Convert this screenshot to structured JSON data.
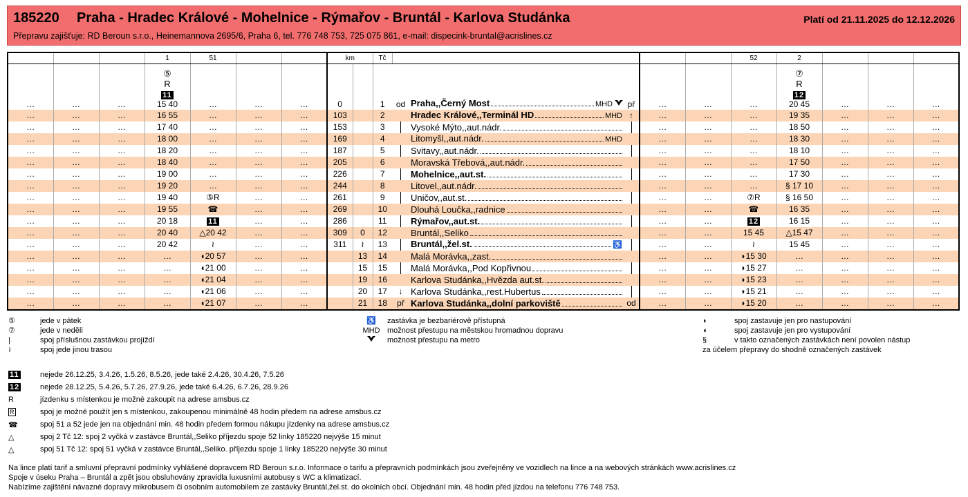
{
  "header": {
    "line": "185220",
    "route": "Praha - Hradec Králové - Mohelnice - Rýmařov - Bruntál - Karlova Studánka",
    "validity": "Platí od 21.11.2025 do 12.12.2026",
    "operator": "Přepravu zajišťuje: RD Beroun s.r.o., Heinemannova 2695/6, Praha 6, tel. 776 748 753, 725 075 861, e-mail: dispecink-bruntal@acrislines.cz"
  },
  "table": {
    "head_left": [
      null,
      null,
      null,
      "1",
      "51",
      null,
      null
    ],
    "head_mid": [
      "km",
      "Tč"
    ],
    "head_right": [
      null,
      null,
      "52",
      "2",
      null,
      null,
      null
    ],
    "flags_left": [
      null,
      null,
      null,
      [
        "⑤",
        "R",
        {
          "text": "11",
          "style": "box"
        }
      ],
      null,
      null,
      null
    ],
    "flags_right": [
      null,
      null,
      null,
      [
        "⑦",
        "R",
        {
          "text": "12",
          "style": "box"
        }
      ],
      null,
      null,
      null
    ],
    "rows": [
      {
        "left": [
          "…",
          "…",
          "…",
          "15 40",
          "…",
          "…",
          "…"
        ],
        "km": 0,
        "tc": 1,
        "in": "od",
        "stop": "Praha,,Černý Most",
        "bold": true,
        "info": "MHD",
        "metro": true,
        "out": "př",
        "right": [
          "…",
          "…",
          "…",
          "20 45",
          "…",
          "…",
          "…"
        ]
      },
      {
        "left": [
          "…",
          "…",
          "…",
          "16 55",
          "…",
          "…",
          "…"
        ],
        "km": 103,
        "tc": 2,
        "stop": "Hradec Králové,,Terminál HD",
        "bold": true,
        "info": "MHD",
        "out": "↑",
        "right": [
          "…",
          "…",
          "…",
          "19 35",
          "…",
          "…",
          "…"
        ]
      },
      {
        "left": [
          "…",
          "…",
          "…",
          "17 40",
          "…",
          "…",
          "…"
        ],
        "km": 153,
        "tc": 3,
        "stop": "Vysoké Mýto,,aut.nádr.",
        "right": [
          "…",
          "…",
          "…",
          "18 50",
          "…",
          "…",
          "…"
        ]
      },
      {
        "left": [
          "…",
          "…",
          "…",
          "18 00",
          "…",
          "…",
          "…"
        ],
        "km": 169,
        "tc": 4,
        "stop": "Litomyšl,,aut.nádr.",
        "info": "MHD",
        "right": [
          "…",
          "…",
          "…",
          "18 30",
          "…",
          "…",
          "…"
        ]
      },
      {
        "left": [
          "…",
          "…",
          "…",
          "18 20",
          "…",
          "…",
          "…"
        ],
        "km": 187,
        "tc": 5,
        "stop": "Svitavy,,aut.nádr.",
        "right": [
          "…",
          "…",
          "…",
          "18 10",
          "…",
          "…",
          "…"
        ]
      },
      {
        "left": [
          "…",
          "…",
          "…",
          "18 40",
          "…",
          "…",
          "…"
        ],
        "km": 205,
        "tc": 6,
        "stop": "Moravská Třebová,,aut.nádr.",
        "right": [
          "…",
          "…",
          "…",
          "17 50",
          "…",
          "…",
          "…"
        ]
      },
      {
        "left": [
          "…",
          "…",
          "…",
          "19 00",
          "…",
          "…",
          "…"
        ],
        "km": 226,
        "tc": 7,
        "stop": "Mohelnice,,aut.st.",
        "bold": true,
        "right": [
          "…",
          "…",
          "…",
          "17 30",
          "…",
          "…",
          "…"
        ]
      },
      {
        "left": [
          "…",
          "…",
          "…",
          "19 20",
          "…",
          "…",
          "…"
        ],
        "km": 244,
        "tc": 8,
        "stop": "Litovel,,aut.nádr.",
        "right": [
          "…",
          "…",
          "…",
          "§ 17 10",
          "…",
          "…",
          "…"
        ]
      },
      {
        "left": [
          "…",
          "…",
          "…",
          "19 40",
          "⑤R",
          "…",
          "…"
        ],
        "km": 261,
        "tc": 9,
        "stop": "Uničov,,aut.st.",
        "right": [
          "…",
          "…",
          "⑦R",
          "§ 16 50",
          "…",
          "…",
          "…"
        ]
      },
      {
        "left": [
          "…",
          "…",
          "…",
          "19 55",
          "☎",
          "…",
          "…"
        ],
        "km": 269,
        "tc": 10,
        "stop": "Dlouhá Loučka,,radnice",
        "right": [
          "…",
          "…",
          "☎",
          "16 35",
          "…",
          "…",
          "…"
        ]
      },
      {
        "left": [
          "…",
          "…",
          "…",
          "20 18",
          {
            "text": "11",
            "style": "box"
          },
          "…",
          "…"
        ],
        "km": 286,
        "tc": 11,
        "stop": "Rýmařov,,aut.st.",
        "bold": true,
        "right": [
          "…",
          "…",
          {
            "text": "12",
            "style": "box"
          },
          "16 15",
          "…",
          "…",
          "…"
        ]
      },
      {
        "left": [
          "…",
          "…",
          "…",
          "20 40",
          "△20 42",
          "…",
          "…"
        ],
        "km": 309,
        "km2": 0,
        "tc": 12,
        "stop": "Bruntál,,Seliko",
        "right": [
          "…",
          "…",
          "15 45",
          "△15 47",
          "…",
          "…",
          "…"
        ]
      },
      {
        "left": [
          "…",
          "…",
          "…",
          "20 42",
          "≀",
          "…",
          "…"
        ],
        "km": 311,
        "km2": "≀",
        "tc": 13,
        "stop": "Bruntál,,žel.st.",
        "bold": true,
        "info": "♿",
        "right": [
          "…",
          "…",
          "≀",
          "15 45",
          "…",
          "…",
          "…"
        ]
      },
      {
        "left": [
          "…",
          "…",
          "…",
          "…",
          "◖20 57",
          "…",
          "…"
        ],
        "km2": 13,
        "tc": 14,
        "stop": "Malá Morávka,,zast.",
        "right": [
          "…",
          "…",
          "◗15 30",
          "…",
          "…",
          "…",
          "…"
        ]
      },
      {
        "left": [
          "…",
          "…",
          "…",
          "…",
          "◖21 00",
          "…",
          "…"
        ],
        "km2": 15,
        "tc": 15,
        "stop": "Malá Morávka,,Pod Kopřivnou",
        "right": [
          "…",
          "…",
          "◗15 27",
          "…",
          "…",
          "…",
          "…"
        ]
      },
      {
        "left": [
          "…",
          "…",
          "…",
          "…",
          "◖21 04",
          "…",
          "…"
        ],
        "km2": 19,
        "tc": 16,
        "stop": "Karlova Studánka,,Hvězda aut.st.",
        "right": [
          "…",
          "…",
          "◗15 23",
          "…",
          "…",
          "…",
          "…"
        ]
      },
      {
        "left": [
          "…",
          "…",
          "…",
          "…",
          "◖21 06",
          "…",
          "…"
        ],
        "km2": 20,
        "tc": 17,
        "in": "↓",
        "stop": "Karlova Studánka,,rest.Hubertus",
        "right": [
          "…",
          "…",
          "◗15 21",
          "…",
          "…",
          "…",
          "…"
        ]
      },
      {
        "left": [
          "…",
          "…",
          "…",
          "…",
          "◖21 07",
          "…",
          "…"
        ],
        "km2": 21,
        "tc": 18,
        "in": "př",
        "stop": "Karlova Studánka,,dolní parkoviště",
        "bold": true,
        "out": "od",
        "right": [
          "…",
          "…",
          "◗15 20",
          "…",
          "…",
          "…",
          "…"
        ]
      }
    ]
  },
  "legend": {
    "left": [
      {
        "symbol": "⑤",
        "text": "jede v pátek"
      },
      {
        "symbol": "⑦",
        "text": "jede v neděli"
      },
      {
        "symbol": "|",
        "text": "spoj příslušnou zastávkou projíždí"
      },
      {
        "symbol": "≀",
        "text": "spoj jede jinou trasou"
      }
    ],
    "middle": [
      {
        "symbol": "♿",
        "text": "zastávka je bezbariérově přístupná"
      },
      {
        "symbol": "MHD",
        "text": "možnost přestupu na městskou hromadnou dopravu"
      },
      {
        "text": "možnost přestupu na metro"
      }
    ],
    "right": [
      {
        "symbol": "◗",
        "text": "spoj zastavuje jen pro nastupování"
      },
      {
        "symbol": "◖",
        "text": "spoj zastavuje jen pro vystupování"
      },
      {
        "symbol": "§",
        "text": "v takto označených zastávkách není povolen nástup"
      },
      {
        "text": "za účelem přepravy do shodně označených zastávek"
      }
    ]
  },
  "notes": [
    {
      "symbol": "11",
      "text": "nejede 26.12.25, 3.4.26, 1.5.26, 8.5.26, jede také 2.4.26, 30.4.26, 7.5.26"
    },
    {
      "symbol": "12",
      "text": "nejede 28.12.25, 5.4.26, 5.7.26, 27.9.26, jede také 6.4.26, 6.7.26, 28.9.26"
    },
    {
      "symbol": "R",
      "text": "jízdenku s místenkou je možné zakoupit na adrese amsbus.cz"
    },
    {
      "symbol": "R",
      "text": "spoj je možné použít jen s místenkou, zakoupenou minimálně 48 hodin předem na adrese amsbus.cz"
    },
    {
      "symbol": "☎",
      "text": "spoj 51 a 52 jede jen na objednání min. 48 hodin předem formou nákupu jízdenky na adrese amsbus.cz"
    },
    {
      "symbol": "△",
      "text": "spoj 2 Tč 12: spoj 2 vyčká v zastávce Bruntál,,Seliko příjezdu spoje 52 linky 185220 nejvýše 15 minut"
    },
    {
      "symbol": "△",
      "text": "spoj 51 Tč 12: spoj 51 vyčká v zastávce Bruntál,,Seliko. příjezdu spoje 1 linky 185220 nejvýše 30 minut"
    }
  ],
  "footer": [
    "Na lince platí tarif a smluvní přepravní podmínky vyhlášené dopravcem RD Beroun s.r.o. Informace o tarifu a přepravních podmínkách jsou zveřejněny ve vozidlech na lince a na webových stránkách www.acrislines.cz",
    "Spoje v úseku Praha – Bruntál a zpět jsou obsluhovány zpravidla luxusními autobusy s WC a klimatizací.",
    "Nabízíme zajištění návazné dopravy mikrobusem či osobním automobilem ze zastávky Bruntál,žel.st. do okolních obcí. Objednání min. 48 hodin před jízdou na telefonu 776 748 753."
  ]
}
